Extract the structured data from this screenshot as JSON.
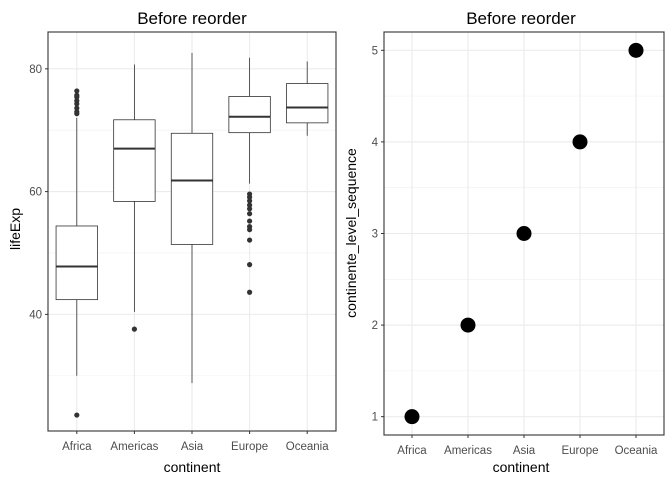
{
  "chart_data": [
    {
      "type": "boxplot",
      "title": "Before reorder",
      "xlabel": "continent",
      "ylabel": "lifeExp",
      "categories": [
        "Africa",
        "Americas",
        "Asia",
        "Europe",
        "Oceania"
      ],
      "ylim": [
        21,
        86
      ],
      "yticks": [
        40,
        60,
        80
      ],
      "ytick_labels": [
        "40",
        "60",
        "80"
      ],
      "grid": true,
      "boxes": [
        {
          "category": "Africa",
          "whisker_low": 30.0,
          "q1": 42.4,
          "median": 47.8,
          "q3": 54.4,
          "whisker_high": 72.0,
          "outliers": [
            23.6,
            72.7,
            73.0,
            73.6,
            74.3,
            74.8,
            75.4,
            75.7,
            76.4
          ]
        },
        {
          "category": "Americas",
          "whisker_low": 40.4,
          "q1": 58.4,
          "median": 67.0,
          "q3": 71.7,
          "whisker_high": 80.7,
          "outliers": [
            37.6
          ]
        },
        {
          "category": "Asia",
          "whisker_low": 28.8,
          "q1": 51.4,
          "median": 61.8,
          "q3": 69.5,
          "whisker_high": 82.6,
          "outliers": []
        },
        {
          "category": "Europe",
          "whisker_low": 61.3,
          "q1": 69.6,
          "median": 72.2,
          "q3": 75.5,
          "whisker_high": 81.8,
          "outliers": [
            43.6,
            48.1,
            52.1,
            53.8,
            54.3,
            55.2,
            56.4,
            57.2,
            57.8,
            58.5,
            59.1,
            59.6
          ]
        },
        {
          "category": "Oceania",
          "whisker_low": 69.1,
          "q1": 71.2,
          "median": 73.7,
          "q3": 77.6,
          "whisker_high": 81.2,
          "outliers": []
        }
      ]
    },
    {
      "type": "scatter",
      "title": "Before reorder",
      "xlabel": "continent",
      "ylabel": "continente_level_sequence",
      "categories": [
        "Africa",
        "Americas",
        "Asia",
        "Europe",
        "Oceania"
      ],
      "values": [
        1,
        2,
        3,
        4,
        5
      ],
      "ylim": [
        0.8,
        5.2
      ],
      "yticks": [
        1,
        2,
        3,
        4,
        5
      ],
      "ytick_labels": [
        "1",
        "2",
        "3",
        "4",
        "5"
      ],
      "grid": true
    }
  ]
}
